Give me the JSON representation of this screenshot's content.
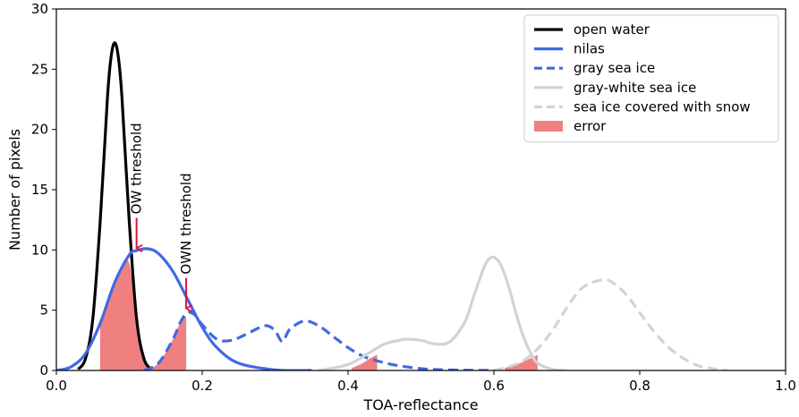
{
  "chart_data": {
    "type": "line",
    "title": "",
    "xlabel": "TOA-reflectance",
    "ylabel": "Number of pixels",
    "xlim": [
      0.0,
      1.0
    ],
    "ylim": [
      0,
      30
    ],
    "xticks": [
      0.0,
      0.2,
      0.4,
      0.6,
      0.8,
      1.0
    ],
    "xtick_labels": [
      "0.0",
      "0.2",
      "0.4",
      "0.6",
      "0.8",
      "1.0"
    ],
    "yticks": [
      0,
      5,
      10,
      15,
      20,
      25,
      30
    ],
    "ytick_labels": [
      "0",
      "5",
      "10",
      "15",
      "20",
      "25",
      "30"
    ],
    "grid": false,
    "legend_position": "top-right",
    "series": [
      {
        "name": "open water",
        "color": "#000000",
        "style": "solid",
        "x": [
          0.03,
          0.04,
          0.05,
          0.06,
          0.07,
          0.075,
          0.08,
          0.085,
          0.09,
          0.1,
          0.11,
          0.12,
          0.13
        ],
        "y": [
          0.1,
          1.0,
          4.3,
          12.3,
          22.6,
          26.0,
          27.2,
          26.0,
          22.6,
          12.3,
          4.3,
          1.0,
          0.1
        ]
      },
      {
        "name": "nilas",
        "color": "#4169e1",
        "style": "solid",
        "x": [
          0.0,
          0.02,
          0.04,
          0.06,
          0.08,
          0.1,
          0.11,
          0.125,
          0.14,
          0.16,
          0.18,
          0.2,
          0.22,
          0.25,
          0.3,
          0.35
        ],
        "y": [
          0.0,
          0.3,
          1.4,
          3.9,
          7.3,
          9.6,
          9.95,
          10.1,
          9.7,
          8.2,
          5.9,
          3.6,
          1.9,
          0.6,
          0.05,
          0.0
        ]
      },
      {
        "name": "gray sea ice",
        "color": "#4169e1",
        "style": "dashed",
        "x": [
          0.12,
          0.14,
          0.16,
          0.17,
          0.18,
          0.19,
          0.2,
          0.22,
          0.24,
          0.26,
          0.28,
          0.29,
          0.3,
          0.31,
          0.32,
          0.34,
          0.36,
          0.38,
          0.4,
          0.42,
          0.44,
          0.46,
          0.48,
          0.5,
          0.52,
          0.56,
          0.6
        ],
        "y": [
          0.0,
          0.6,
          2.6,
          4.0,
          4.8,
          4.6,
          3.8,
          2.6,
          2.5,
          3.0,
          3.6,
          3.7,
          3.3,
          2.4,
          3.4,
          4.1,
          3.7,
          2.8,
          1.9,
          1.2,
          0.8,
          0.5,
          0.3,
          0.15,
          0.08,
          0.02,
          0.0
        ]
      },
      {
        "name": "gray-white sea ice",
        "color": "#d3d3d3",
        "style": "solid",
        "x": [
          0.36,
          0.4,
          0.43,
          0.45,
          0.47,
          0.48,
          0.5,
          0.52,
          0.54,
          0.56,
          0.57,
          0.58,
          0.59,
          0.6,
          0.61,
          0.62,
          0.63,
          0.64,
          0.65,
          0.66,
          0.68,
          0.7
        ],
        "y": [
          0.0,
          0.5,
          1.5,
          2.2,
          2.5,
          2.6,
          2.5,
          2.2,
          2.4,
          4.0,
          5.7,
          7.5,
          9.0,
          9.4,
          8.7,
          7.0,
          4.8,
          2.9,
          1.5,
          0.6,
          0.1,
          0.0
        ]
      },
      {
        "name": "sea ice covered with snow",
        "color": "#d3d3d3",
        "style": "dashed",
        "x": [
          0.6,
          0.62,
          0.64,
          0.66,
          0.68,
          0.7,
          0.72,
          0.74,
          0.75,
          0.76,
          0.78,
          0.8,
          0.82,
          0.84,
          0.86,
          0.88,
          0.9,
          0.92
        ],
        "y": [
          0.0,
          0.3,
          0.8,
          1.8,
          3.3,
          5.2,
          6.8,
          7.4,
          7.5,
          7.4,
          6.4,
          4.8,
          3.2,
          1.9,
          1.0,
          0.4,
          0.15,
          0.0
        ]
      }
    ],
    "error_areas": {
      "name": "error",
      "color": "#f08080",
      "regions": [
        {
          "x": [
            0.06,
            0.07,
            0.08,
            0.09,
            0.1,
            0.11,
            0.12,
            0.13,
            0.14,
            0.15,
            0.16,
            0.165
          ],
          "y": [
            3.9,
            5.6,
            7.3,
            8.5,
            8.9,
            4.3,
            1.0,
            0.1,
            0.0,
            0.0,
            0.0,
            0.0
          ]
        },
        {
          "x": [
            0.12,
            0.14,
            0.16,
            0.17,
            0.178
          ],
          "y": [
            0.0,
            0.6,
            2.6,
            4.0,
            4.5
          ]
        },
        {
          "x": [
            0.405,
            0.42,
            0.43,
            0.44
          ],
          "y": [
            0.2,
            0.6,
            1.0,
            1.3
          ]
        },
        {
          "x": [
            0.615,
            0.63,
            0.64,
            0.65,
            0.66
          ],
          "y": [
            0.2,
            0.5,
            0.7,
            1.0,
            1.3
          ]
        }
      ]
    },
    "annotations": [
      {
        "text": "OW threshold",
        "x": 0.11,
        "arrow_tip_y": 10.0
      },
      {
        "text": "OWN threshold",
        "x": 0.178,
        "arrow_tip_y": 5.0
      }
    ],
    "annotation_color": "#dc143c"
  }
}
